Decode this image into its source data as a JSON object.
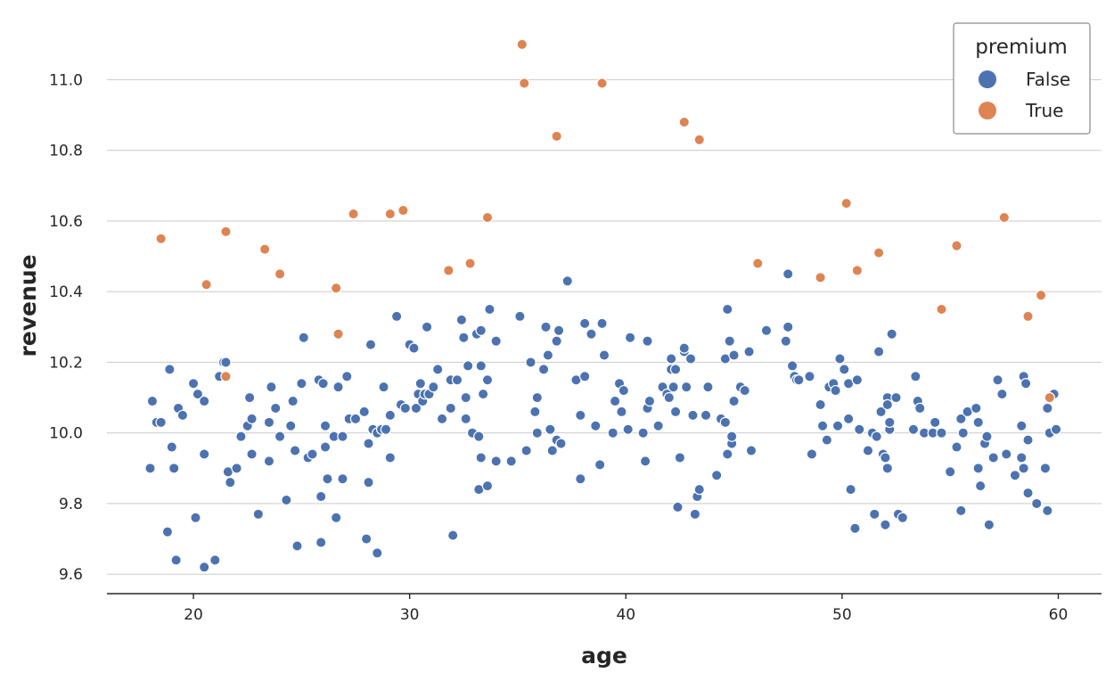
{
  "chart_data": {
    "type": "scatter",
    "xlabel": "age",
    "ylabel": "revenue",
    "xlim": [
      16,
      62
    ],
    "ylim": [
      9.545,
      11.15
    ],
    "xticks": [
      20,
      30,
      40,
      50,
      60
    ],
    "xtick_labels": [
      "20",
      "30",
      "40",
      "50",
      "60"
    ],
    "yticks": [
      9.6,
      9.8,
      10.0,
      10.2,
      10.4,
      10.6,
      10.8,
      11.0
    ],
    "ytick_labels": [
      "9.6",
      "9.8",
      "10.0",
      "10.2",
      "10.4",
      "10.6",
      "10.8",
      "11.0"
    ],
    "grid": "horizontal",
    "legend": {
      "title": "premium",
      "placement": "top-right",
      "entries": [
        {
          "label": "False",
          "color": "#4c72b0"
        },
        {
          "label": "True",
          "color": "#dd8452"
        }
      ]
    },
    "series": [
      {
        "name": "False",
        "color": "#4c72b0",
        "x": [
          18.0,
          18.1,
          18.3,
          18.5,
          18.8,
          18.9,
          19.0,
          19.1,
          19.2,
          19.3,
          19.5,
          20.0,
          20.1,
          20.2,
          20.5,
          20.5,
          20.5,
          21.0,
          21.2,
          21.4,
          21.5,
          21.6,
          21.7,
          22.0,
          22.2,
          22.5,
          22.6,
          22.7,
          22.7,
          23.0,
          23.5,
          23.5,
          23.6,
          23.8,
          24.0,
          24.3,
          24.5,
          24.6,
          24.7,
          24.8,
          25.0,
          25.1,
          25.3,
          25.5,
          25.8,
          25.9,
          25.9,
          26.0,
          26.1,
          26.1,
          26.2,
          26.5,
          26.6,
          26.7,
          26.9,
          26.9,
          27.1,
          27.2,
          27.5,
          27.9,
          28.0,
          28.1,
          28.1,
          28.2,
          28.3,
          28.5,
          28.5,
          28.7,
          28.8,
          28.9,
          29.1,
          29.1,
          29.4,
          29.6,
          29.8,
          30.0,
          30.2,
          30.3,
          30.4,
          30.5,
          30.6,
          30.7,
          30.8,
          30.9,
          31.1,
          31.3,
          31.5,
          31.9,
          31.9,
          32.0,
          32.2,
          32.4,
          32.5,
          32.6,
          32.6,
          32.7,
          32.9,
          33.1,
          33.2,
          33.2,
          33.3,
          33.3,
          33.3,
          33.4,
          33.6,
          33.6,
          33.7,
          34.0,
          34.0,
          34.7,
          35.1,
          35.4,
          35.6,
          35.8,
          35.9,
          35.9,
          36.2,
          36.3,
          36.4,
          36.5,
          36.6,
          36.8,
          36.8,
          36.9,
          37.0,
          37.3,
          37.7,
          37.9,
          37.9,
          38.1,
          38.1,
          38.4,
          38.6,
          38.8,
          38.9,
          39.0,
          39.4,
          39.5,
          39.7,
          39.8,
          39.9,
          40.1,
          40.2,
          40.8,
          40.9,
          41.0,
          41.0,
          41.1,
          41.5,
          41.7,
          41.9,
          42.0,
          42.1,
          42.1,
          42.2,
          42.3,
          42.3,
          42.4,
          42.5,
          42.7,
          42.7,
          42.8,
          43.0,
          43.1,
          43.2,
          43.3,
          43.4,
          43.7,
          43.8,
          44.2,
          44.4,
          44.6,
          44.6,
          44.7,
          44.7,
          44.8,
          44.9,
          44.9,
          45.0,
          45.0,
          45.3,
          45.5,
          45.7,
          45.8,
          46.5,
          47.4,
          47.5,
          47.5,
          47.7,
          47.8,
          47.9,
          48.0,
          48.5,
          48.6,
          49.0,
          49.1,
          49.3,
          49.4,
          49.6,
          49.7,
          49.8,
          49.9,
          50.1,
          50.3,
          50.3,
          50.4,
          50.6,
          50.7,
          50.8,
          51.2,
          51.4,
          51.5,
          51.6,
          51.7,
          51.8,
          51.9,
          52.0,
          52.0,
          52.1,
          52.1,
          52.1,
          52.2,
          52.2,
          52.3,
          52.5,
          52.6,
          52.8,
          53.3,
          53.4,
          53.5,
          53.6,
          53.8,
          54.2,
          54.3,
          54.6,
          55.0,
          55.3,
          55.5,
          55.5,
          55.6,
          55.8,
          56.2,
          56.3,
          56.3,
          56.4,
          56.6,
          56.7,
          56.8,
          57.0,
          57.2,
          57.4,
          57.6,
          58.0,
          58.3,
          58.3,
          58.4,
          58.4,
          58.5,
          58.6,
          58.6,
          59.0,
          59.4,
          59.5,
          59.5,
          59.6,
          59.8,
          59.9
        ],
        "y": [
          9.9,
          10.09,
          10.03,
          10.03,
          9.72,
          10.18,
          9.96,
          9.9,
          9.64,
          10.07,
          10.05,
          10.14,
          9.76,
          10.11,
          10.09,
          9.94,
          9.62,
          9.64,
          10.16,
          10.2,
          10.2,
          9.89,
          9.86,
          9.9,
          9.99,
          10.02,
          10.1,
          10.04,
          9.94,
          9.77,
          10.03,
          9.92,
          10.13,
          10.07,
          9.99,
          9.81,
          10.02,
          10.09,
          9.95,
          9.68,
          10.14,
          10.27,
          9.93,
          9.94,
          10.15,
          9.82,
          9.69,
          10.14,
          9.96,
          10.02,
          9.87,
          9.99,
          9.76,
          10.13,
          9.87,
          9.99,
          10.16,
          10.04,
          10.04,
          10.06,
          9.7,
          9.97,
          9.86,
          10.25,
          10.01,
          9.66,
          10.0,
          10.01,
          10.13,
          10.01,
          10.05,
          9.93,
          10.33,
          10.08,
          10.07,
          10.25,
          10.24,
          10.07,
          10.11,
          10.14,
          10.09,
          10.11,
          10.3,
          10.11,
          10.13,
          10.18,
          10.04,
          10.15,
          10.07,
          9.71,
          10.15,
          10.32,
          10.27,
          10.1,
          10.04,
          10.19,
          10.0,
          10.28,
          9.99,
          9.84,
          10.29,
          10.19,
          9.93,
          10.11,
          10.15,
          9.85,
          10.35,
          9.92,
          10.26,
          9.92,
          10.33,
          9.95,
          10.2,
          10.06,
          10.1,
          10.0,
          10.18,
          10.3,
          10.22,
          10.01,
          9.95,
          9.98,
          10.26,
          10.29,
          9.97,
          10.43,
          10.15,
          10.05,
          9.87,
          10.16,
          10.31,
          10.28,
          10.02,
          9.91,
          10.31,
          10.22,
          10.0,
          10.09,
          10.14,
          10.06,
          10.12,
          10.01,
          10.27,
          10.0,
          9.92,
          10.26,
          10.07,
          10.09,
          10.02,
          10.13,
          10.11,
          10.1,
          10.21,
          10.18,
          10.13,
          10.06,
          10.18,
          9.79,
          9.93,
          10.23,
          10.24,
          10.13,
          10.21,
          10.05,
          9.77,
          9.82,
          9.84,
          10.05,
          10.13,
          9.88,
          10.04,
          10.03,
          10.21,
          9.94,
          10.35,
          10.26,
          9.97,
          9.99,
          10.09,
          10.22,
          10.13,
          10.12,
          10.23,
          9.95,
          10.29,
          10.26,
          10.45,
          10.3,
          10.19,
          10.16,
          10.15,
          10.15,
          10.16,
          9.94,
          10.08,
          10.02,
          9.98,
          10.13,
          10.14,
          10.12,
          10.02,
          10.21,
          10.18,
          10.14,
          10.04,
          9.84,
          9.73,
          10.15,
          10.01,
          9.95,
          10.0,
          9.77,
          9.99,
          10.23,
          10.06,
          9.94,
          9.74,
          9.93,
          9.9,
          10.1,
          10.08,
          10.01,
          10.03,
          10.28,
          10.1,
          9.77,
          9.76,
          10.01,
          10.16,
          10.09,
          10.07,
          10.0,
          10.0,
          10.03,
          10.0,
          9.89,
          9.96,
          9.78,
          10.04,
          10.0,
          10.06,
          10.07,
          10.03,
          9.9,
          9.85,
          9.97,
          9.99,
          9.74,
          9.93,
          10.15,
          10.11,
          9.94,
          9.88,
          10.02,
          9.93,
          9.9,
          10.16,
          10.14,
          9.83,
          9.98,
          9.8,
          9.9,
          9.78,
          10.07,
          10.0,
          10.11,
          10.01
        ]
      },
      {
        "name": "True",
        "color": "#dd8452",
        "x": [
          18.5,
          20.6,
          21.5,
          21.5,
          23.3,
          24.0,
          26.6,
          26.7,
          27.4,
          29.1,
          29.7,
          31.8,
          32.8,
          33.6,
          35.2,
          35.3,
          36.8,
          38.9,
          42.7,
          43.4,
          46.1,
          49.0,
          50.2,
          50.7,
          51.7,
          54.6,
          55.3,
          57.5,
          58.6,
          59.2,
          59.6
        ],
        "y": [
          10.55,
          10.42,
          10.57,
          10.16,
          10.52,
          10.45,
          10.41,
          10.28,
          10.62,
          10.62,
          10.63,
          10.46,
          10.48,
          10.61,
          11.1,
          10.99,
          10.84,
          10.99,
          10.88,
          10.83,
          10.48,
          10.44,
          10.65,
          10.46,
          10.51,
          10.35,
          10.53,
          10.61,
          10.33,
          10.39,
          10.1
        ]
      }
    ]
  }
}
